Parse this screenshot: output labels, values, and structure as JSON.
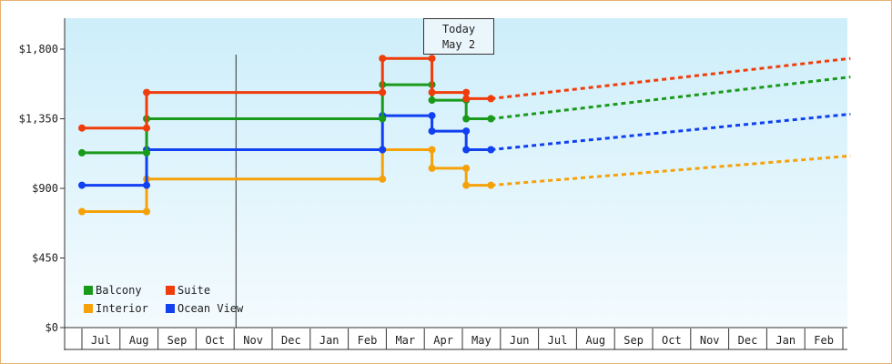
{
  "chart_data": {
    "type": "line",
    "title": "",
    "xlabel": "",
    "ylabel": "",
    "ylim": [
      0,
      2000
    ],
    "yticks": [
      0,
      450,
      900,
      1350,
      1800
    ],
    "ytick_labels": [
      "$0",
      "$450",
      "$900",
      "$1,350",
      "$1,800"
    ],
    "categories": [
      "Jul",
      "Aug",
      "Sep",
      "Oct",
      "Nov",
      "Dec",
      "Jan",
      "Feb",
      "Mar",
      "Apr",
      "May",
      "Jun",
      "Jul",
      "Aug",
      "Sep",
      "Oct",
      "Nov",
      "Dec",
      "Jan",
      "Feb"
    ],
    "x_start_month": 6.0,
    "grid": false,
    "legend_position": "bottom-left",
    "today_marker": {
      "line1": "Today",
      "line2": "May 2",
      "month": 10.05
    },
    "series": [
      {
        "name": "Balcony",
        "color": "#1a9a1a",
        "points": [
          [
            6.0,
            1130
          ],
          [
            7.7,
            1130
          ],
          [
            7.7,
            1350
          ],
          [
            13.9,
            1350
          ],
          [
            13.9,
            1570
          ],
          [
            15.2,
            1570
          ],
          [
            15.2,
            1470
          ],
          [
            16.1,
            1470
          ],
          [
            16.1,
            1350
          ],
          [
            16.75,
            1350
          ]
        ],
        "projection": [
          [
            16.75,
            1350
          ],
          [
            26.2,
            1620
          ]
        ]
      },
      {
        "name": "Suite",
        "color": "#f03c0a",
        "points": [
          [
            6.0,
            1290
          ],
          [
            7.7,
            1290
          ],
          [
            7.7,
            1520
          ],
          [
            13.9,
            1520
          ],
          [
            13.9,
            1740
          ],
          [
            15.2,
            1740
          ],
          [
            15.2,
            1520
          ],
          [
            16.1,
            1520
          ],
          [
            16.1,
            1480
          ],
          [
            16.75,
            1480
          ]
        ],
        "projection": [
          [
            16.75,
            1480
          ],
          [
            26.2,
            1740
          ]
        ]
      },
      {
        "name": "Interior",
        "color": "#f5a20a",
        "points": [
          [
            6.0,
            750
          ],
          [
            7.7,
            750
          ],
          [
            7.7,
            960
          ],
          [
            13.9,
            960
          ],
          [
            13.9,
            1150
          ],
          [
            15.2,
            1150
          ],
          [
            15.2,
            1030
          ],
          [
            16.1,
            1030
          ],
          [
            16.1,
            920
          ],
          [
            16.75,
            920
          ]
        ],
        "projection": [
          [
            16.75,
            920
          ],
          [
            26.2,
            1110
          ]
        ]
      },
      {
        "name": "Ocean View",
        "color": "#1040f0",
        "points": [
          [
            6.0,
            920
          ],
          [
            7.7,
            920
          ],
          [
            7.7,
            1150
          ],
          [
            13.9,
            1150
          ],
          [
            13.9,
            1370
          ],
          [
            15.2,
            1370
          ],
          [
            15.2,
            1270
          ],
          [
            16.1,
            1270
          ],
          [
            16.1,
            1150
          ],
          [
            16.75,
            1150
          ]
        ],
        "projection": [
          [
            16.75,
            1150
          ],
          [
            26.2,
            1380
          ]
        ]
      }
    ]
  }
}
